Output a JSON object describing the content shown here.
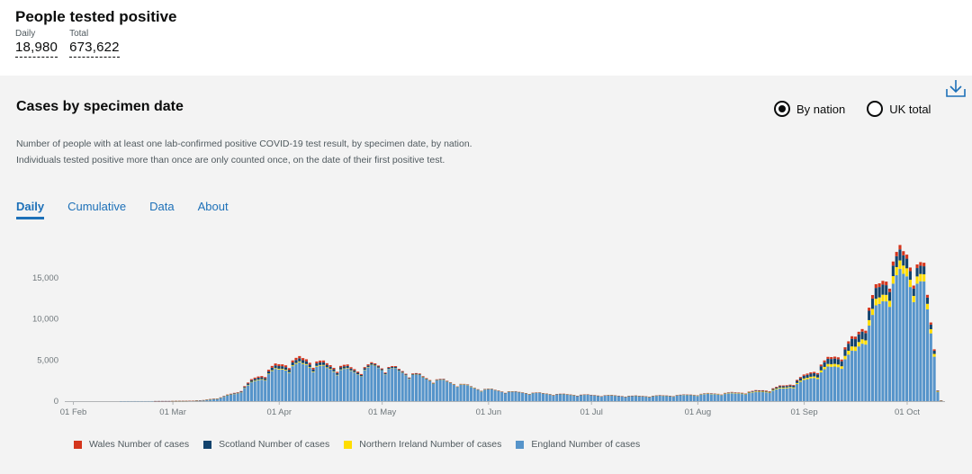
{
  "headline": {
    "title": "People tested positive",
    "daily_label": "Daily",
    "daily_value": "18,980",
    "total_label": "Total",
    "total_value": "673,622"
  },
  "card": {
    "title": "Cases by specimen date",
    "description": "Number of people with at least one lab-confirmed positive COVID-19 test result, by specimen date, by nation. Individuals tested positive more than once are only counted once, on the date of their first positive test.",
    "download_icon": "download-icon",
    "radio_options": [
      {
        "label": "By nation",
        "checked": true
      },
      {
        "label": "UK total",
        "checked": false
      }
    ],
    "tabs": [
      {
        "label": "Daily",
        "active": true
      },
      {
        "label": "Cumulative",
        "active": false
      },
      {
        "label": "Data",
        "active": false
      },
      {
        "label": "About",
        "active": false
      }
    ]
  },
  "colors": {
    "wales": "#d4351c",
    "scotland": "#12436d",
    "northern_ireland": "#ffdd00",
    "england": "#5694ca",
    "link": "#1d70b8"
  },
  "chart_data": {
    "type": "bar",
    "stacked": true,
    "y_ticks": [
      "0",
      "5,000",
      "10,000",
      "15,000"
    ],
    "x_ticks": [
      "01 Feb",
      "01 Mar",
      "01 Apr",
      "01 May",
      "01 Jun",
      "01 Jul",
      "01 Aug",
      "01 Sep",
      "01 Oct"
    ],
    "ylim": [
      0,
      18500
    ],
    "x_start": "2020-01-30",
    "series_names": [
      "Wales Number of cases",
      "Scotland Number of cases",
      "Northern Ireland Number of cases",
      "England Number of cases"
    ],
    "grid": false,
    "legend_position": "bottom",
    "england_weekly": [
      0,
      0,
      0,
      0,
      5,
      5,
      10,
      20,
      100,
      400,
      1000,
      2400,
      3500,
      4200,
      4500,
      4000,
      3800,
      3500,
      4200,
      3800,
      3300,
      2700,
      2400,
      2000,
      1500,
      1300,
      1100,
      1000,
      900,
      800,
      750,
      700,
      650,
      600,
      600,
      650,
      700,
      800,
      850,
      900,
      1000,
      1200,
      1600,
      2400,
      3500,
      4500,
      6000,
      10000,
      14000,
      15500,
      13500,
      800
    ],
    "scotland_weekly": [
      0,
      0,
      0,
      0,
      0,
      0,
      2,
      5,
      10,
      30,
      80,
      200,
      300,
      350,
      350,
      300,
      250,
      200,
      150,
      130,
      100,
      70,
      50,
      40,
      30,
      20,
      10,
      10,
      10,
      10,
      10,
      10,
      10,
      10,
      10,
      15,
      20,
      30,
      40,
      50,
      70,
      100,
      180,
      300,
      500,
      700,
      900,
      1200,
      1300,
      1200,
      900,
      100
    ],
    "wales_weekly": [
      0,
      0,
      0,
      0,
      0,
      0,
      1,
      3,
      5,
      20,
      60,
      150,
      200,
      250,
      250,
      200,
      180,
      150,
      120,
      100,
      80,
      60,
      50,
      40,
      30,
      25,
      20,
      20,
      20,
      15,
      15,
      15,
      15,
      15,
      20,
      20,
      20,
      30,
      40,
      50,
      60,
      80,
      100,
      150,
      200,
      250,
      300,
      400,
      500,
      500,
      400,
      50
    ],
    "ni_weekly": [
      0,
      0,
      0,
      0,
      0,
      0,
      0,
      1,
      2,
      10,
      30,
      60,
      80,
      100,
      100,
      80,
      60,
      50,
      40,
      35,
      30,
      25,
      20,
      20,
      15,
      10,
      10,
      10,
      10,
      10,
      10,
      10,
      10,
      10,
      10,
      15,
      20,
      30,
      40,
      50,
      60,
      80,
      100,
      150,
      250,
      350,
      500,
      700,
      900,
      1000,
      800,
      80
    ]
  },
  "legend": {
    "items": [
      {
        "label": "Wales Number of cases",
        "color": "#d4351c"
      },
      {
        "label": "Scotland Number of cases",
        "color": "#12436d"
      },
      {
        "label": "Northern Ireland Number of cases",
        "color": "#ffdd00"
      },
      {
        "label": "England Number of cases",
        "color": "#5694ca"
      }
    ]
  }
}
